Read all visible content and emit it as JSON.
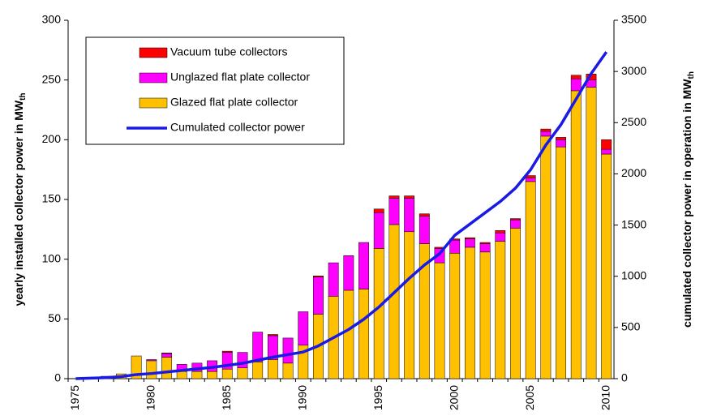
{
  "chart_data": {
    "type": "bar",
    "stacked": true,
    "ylabel": "yearly installed collector power in MW",
    "ylabel_sub": "th",
    "y2label": "cumulated collector power in operation in MW",
    "y2label_sub": "th",
    "categories": [
      "1975",
      null,
      null,
      null,
      null,
      "1980",
      null,
      null,
      null,
      null,
      "1985",
      null,
      null,
      null,
      null,
      "1990",
      null,
      null,
      null,
      null,
      "1995",
      null,
      null,
      null,
      null,
      "2000",
      null,
      null,
      null,
      null,
      "2005",
      null,
      null,
      null,
      null,
      "2010"
    ],
    "ylim": [
      0,
      300
    ],
    "yticks": [
      0,
      50,
      100,
      150,
      200,
      250,
      300
    ],
    "y2lim": [
      0,
      3500
    ],
    "y2ticks": [
      0,
      500,
      1000,
      1500,
      2000,
      2500,
      3000,
      3500
    ],
    "legend": "top-left",
    "series": [
      {
        "name": "Glazed flat plate collector",
        "color": "#ffc000",
        "values": [
          0,
          0.5,
          2,
          4,
          19,
          15,
          18,
          6,
          6,
          6,
          8,
          9,
          14,
          16,
          13,
          28,
          54,
          69,
          74,
          75,
          109,
          129,
          123,
          113,
          97,
          105,
          110,
          106,
          115,
          126,
          165,
          203,
          194,
          241,
          244,
          188
        ]
      },
      {
        "name": "Unglazed flat plate collector",
        "color": "#ff00ff",
        "values": [
          0,
          0,
          0,
          0,
          0,
          1,
          3,
          6,
          7,
          9,
          14,
          13,
          25,
          20,
          21,
          28,
          31,
          28,
          29,
          39,
          30,
          22,
          28,
          23,
          12,
          11,
          7,
          7,
          7,
          7,
          3,
          4,
          6,
          10,
          6,
          4
        ]
      },
      {
        "name": "Vacuum tube collectors",
        "color": "#ff0000",
        "values": [
          0,
          0,
          0,
          0,
          0,
          0,
          0.5,
          0,
          0,
          0,
          1,
          0,
          0,
          1,
          0,
          0,
          1,
          0,
          0,
          0,
          3,
          2,
          2,
          2,
          1,
          1,
          1,
          1,
          2,
          1,
          2,
          2,
          2,
          3,
          5,
          8
        ]
      },
      {
        "name": "Cumulated collector power",
        "color": "#1a1ae6",
        "type": "line",
        "axis": "y2",
        "values": [
          0,
          5,
          10,
          20,
          40,
          50,
          65,
          80,
          95,
          110,
          130,
          150,
          180,
          210,
          235,
          260,
          320,
          400,
          480,
          580,
          700,
          840,
          980,
          1110,
          1220,
          1400,
          1510,
          1620,
          1730,
          1860,
          2040,
          2280,
          2480,
          2730,
          2980,
          3190
        ]
      }
    ]
  }
}
